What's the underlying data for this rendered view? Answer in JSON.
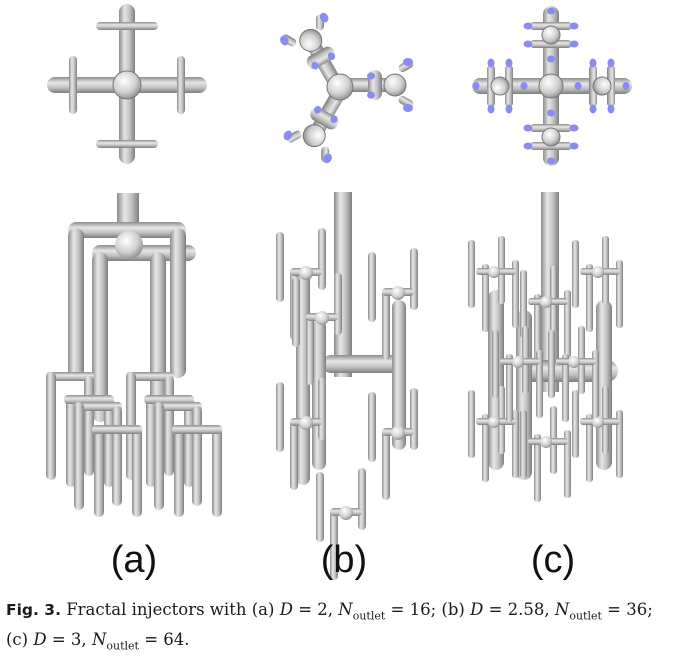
{
  "panels": [
    {
      "label": "(a)"
    },
    {
      "label": "(b)"
    },
    {
      "label": "(c)"
    }
  ],
  "caption": {
    "fig_label": "Fig. 3.",
    "lead": "Fractal injectors with",
    "a_prefix": "(a)",
    "a_d_var": "D",
    "a_d_val": "= 2,",
    "a_n_var": "N",
    "a_n_sub": "outlet",
    "a_n_val": "= 16;",
    "b_prefix": "(b)",
    "b_d_var": "D",
    "b_d_val": "= 2.58,",
    "b_n_var": "N",
    "b_n_sub": "outlet",
    "b_n_val": "= 36;",
    "c_prefix": "(c)",
    "c_d_var": "D",
    "c_d_val": "= 3,",
    "c_n_var": "N",
    "c_n_sub": "outlet",
    "c_n_val": "= 64."
  },
  "colors": {
    "pipe": "#b8b8b8",
    "pipe_highlight": "#e8e8e8",
    "outlet_cap": "#8a8cf0"
  }
}
